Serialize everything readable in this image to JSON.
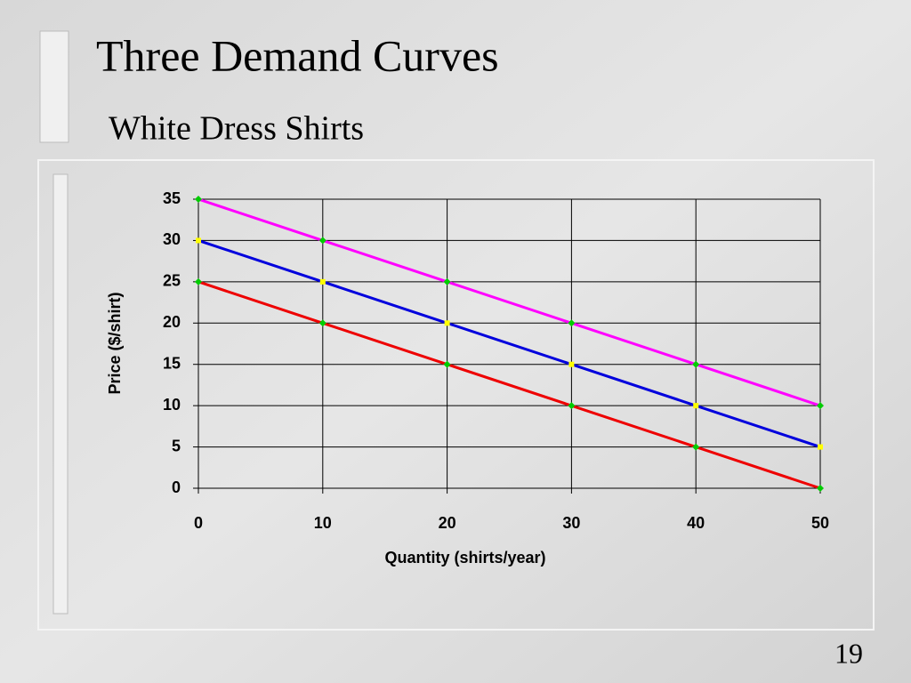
{
  "chart_data": {
    "type": "line",
    "title": "Three Demand Curves",
    "subtitle": "White Dress Shirts",
    "x_label": "Quantity (shirts/year)",
    "y_label": "Price ($/shirt)",
    "x": [
      0,
      10,
      20,
      30,
      40,
      50
    ],
    "series": [
      {
        "color": "#ff00ff",
        "marker": "diamond",
        "marker_color": "#00cc00",
        "values": [
          35,
          30,
          25,
          20,
          15,
          10
        ]
      },
      {
        "color": "#0000dd",
        "marker": "square",
        "marker_color": "#ffff00",
        "values": [
          30,
          25,
          20,
          15,
          10,
          5
        ]
      },
      {
        "color": "#ee0000",
        "marker": "diamond",
        "marker_color": "#00cc00",
        "values": [
          25,
          20,
          15,
          10,
          5,
          0
        ]
      }
    ],
    "xlim": [
      0,
      50
    ],
    "xticks": [
      0,
      10,
      20,
      30,
      40,
      50
    ],
    "ylim": [
      0,
      35
    ],
    "yticks": [
      0,
      5,
      10,
      15,
      20,
      25,
      30,
      35
    ],
    "grid": true
  },
  "page_number": "19"
}
